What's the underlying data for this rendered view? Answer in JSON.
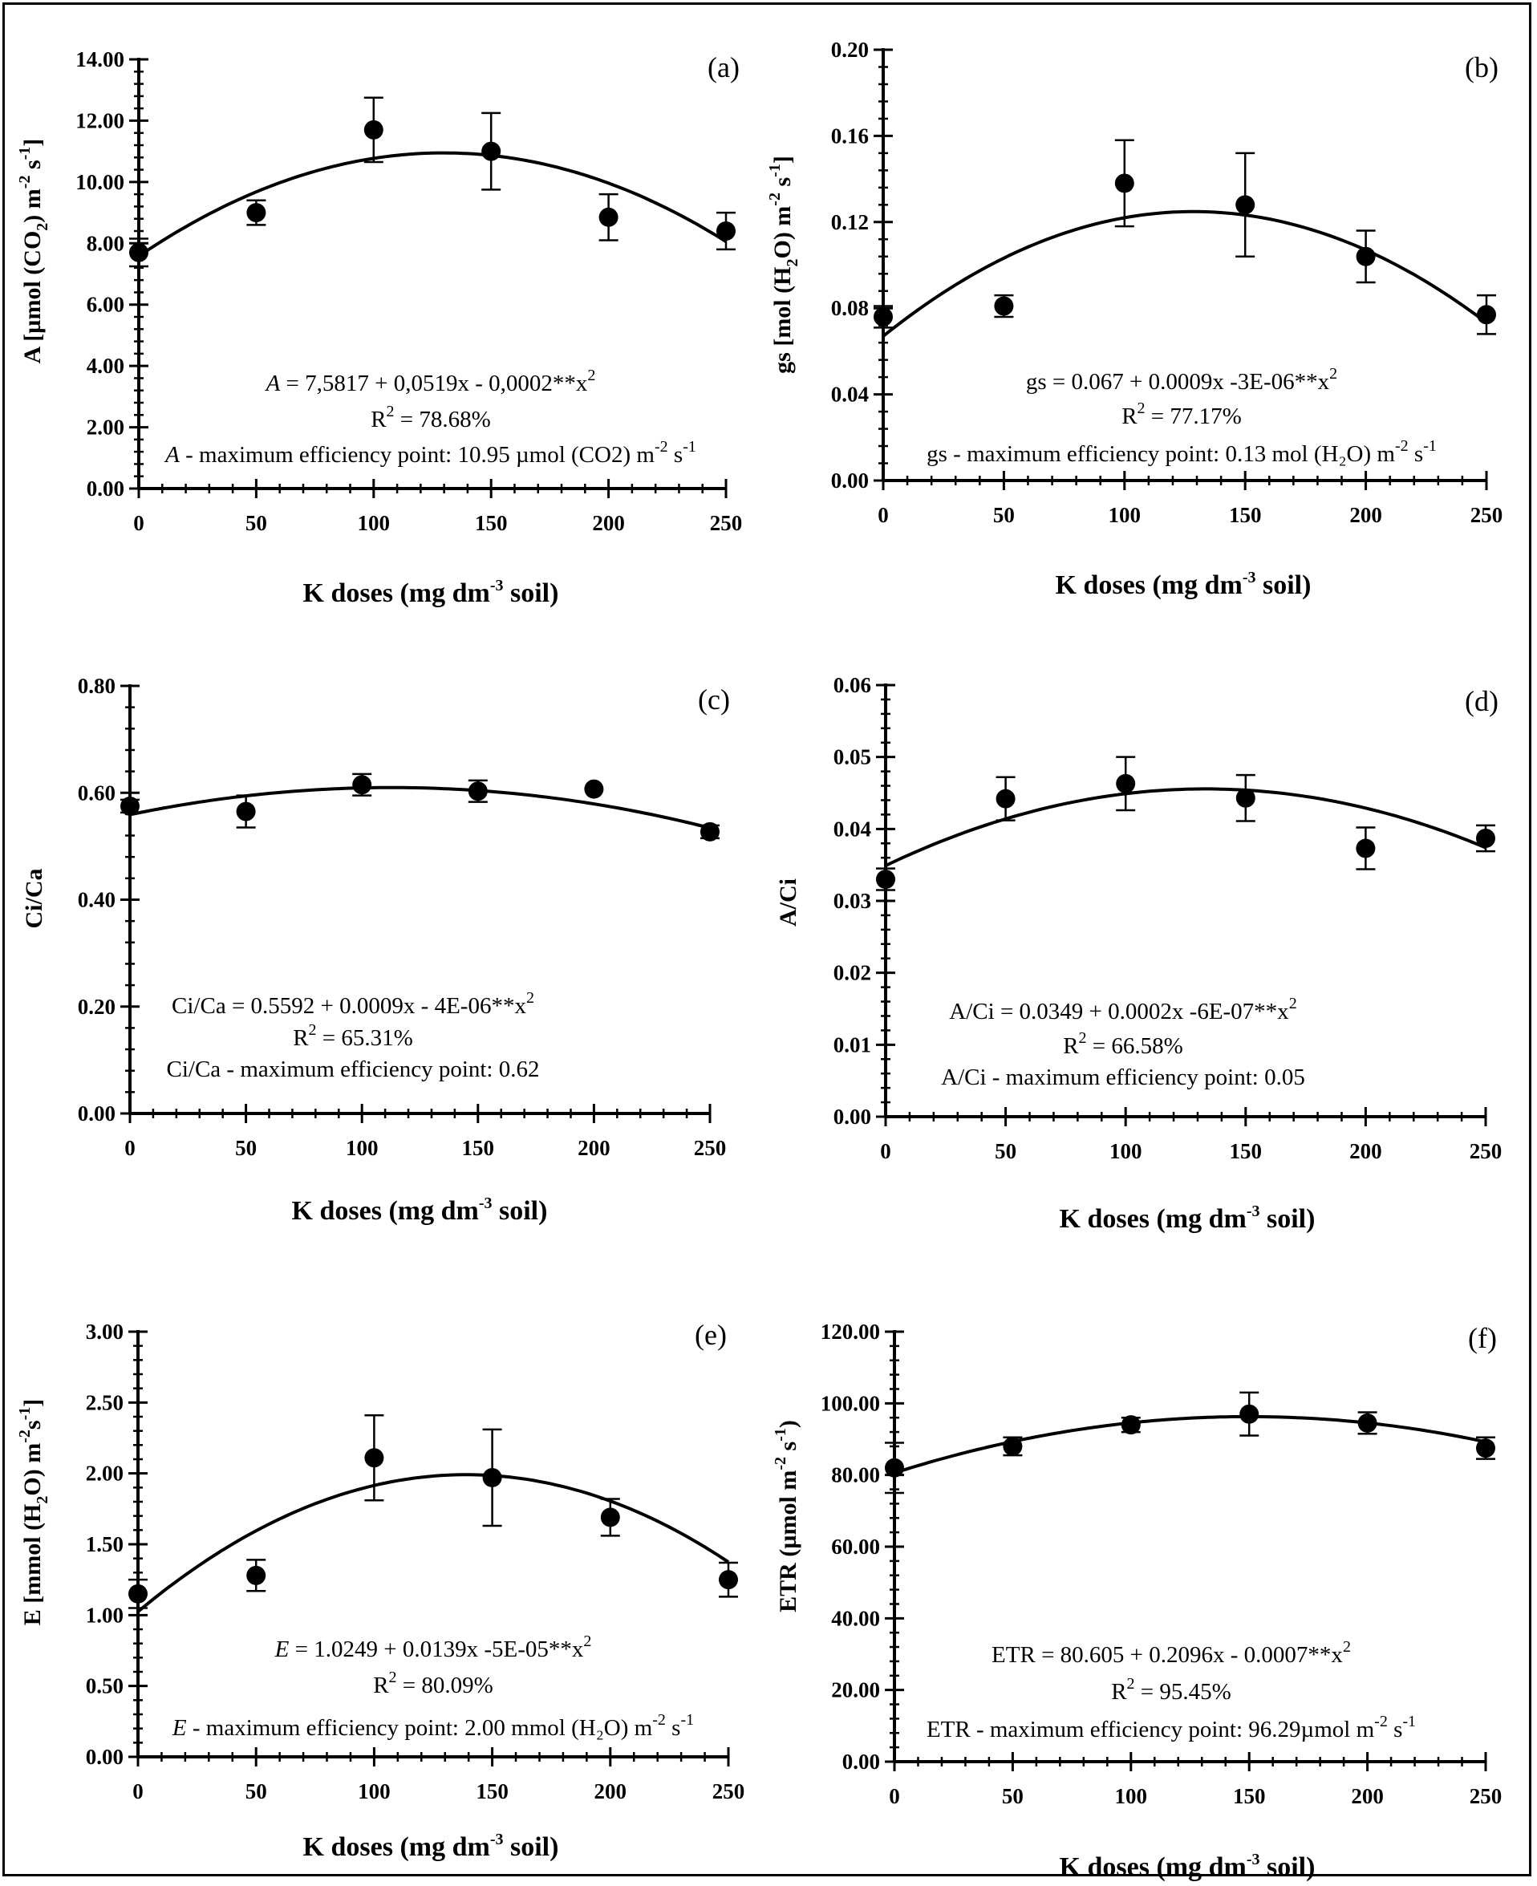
{
  "chart_data": [
    {
      "id": "a",
      "type": "scatter",
      "panel_label": "(a)",
      "xlabel": "K doses (mg dm-3 soil)",
      "ylabel": "A [µmol (CO2) m-2 s-1]",
      "x": [
        0,
        50,
        100,
        150,
        200,
        250
      ],
      "y": [
        7.7,
        9.0,
        11.7,
        11.0,
        8.85,
        8.4
      ],
      "err": [
        0.45,
        0.4,
        1.05,
        1.25,
        0.75,
        0.6
      ],
      "fit": {
        "a": 7.5817,
        "b": 0.0519,
        "c": -0.0002
      },
      "xlim": [
        0,
        250
      ],
      "ylim": [
        0,
        14
      ],
      "xticks": [
        "0",
        "50",
        "100",
        "150",
        "200",
        "250"
      ],
      "yticks": [
        "0.00",
        "2.00",
        "4.00",
        "6.00",
        "8.00",
        "10.00",
        "12.00",
        "14.00"
      ],
      "equation": {
        "lead": "A",
        "rest": " =  7,5817  + 0,0519x - 0,0002**x",
        "sup": "2"
      },
      "r2": {
        "pre": "R",
        "sup": "2",
        "post": " = 78.68%"
      },
      "mep": {
        "lead": "A",
        "rest": " - maximum efficiency point: 10.95 µmol (CO2) m",
        "sup1": "-2",
        "mid": " s",
        "sup2": "-1"
      }
    },
    {
      "id": "b",
      "type": "scatter",
      "panel_label": "(b)",
      "xlabel": "K doses (mg dm-3 soil)",
      "ylabel": "gs [mol (H2O) m-2 s-1]",
      "x": [
        0,
        50,
        100,
        150,
        200,
        250
      ],
      "y": [
        0.076,
        0.081,
        0.138,
        0.128,
        0.104,
        0.077
      ],
      "err": [
        0.005,
        0.005,
        0.02,
        0.024,
        0.012,
        0.009
      ],
      "fit": {
        "a": 0.067,
        "b": 0.0009,
        "c": -3.5e-06
      },
      "xlim": [
        0,
        250
      ],
      "ylim": [
        0,
        0.2
      ],
      "xticks": [
        "0",
        "50",
        "100",
        "150",
        "200",
        "250"
      ],
      "yticks": [
        "0.00",
        "0.04",
        "0.08",
        "0.12",
        "0.16",
        "0.20"
      ],
      "equation": {
        "lead": "",
        "rest": "gs = 0.067 + 0.0009x -3E-06**x",
        "sup": "2"
      },
      "r2": {
        "pre": "R",
        "sup": "2",
        "post": " = 77.17%"
      },
      "mep": {
        "lead": "",
        "rest": "gs - maximum efficiency point: 0.13  mol (H₂O) m",
        "sup1": "-2",
        "mid": " s",
        "sup2": "-1"
      }
    },
    {
      "id": "c",
      "type": "scatter",
      "panel_label": "(c)",
      "xlabel": "K doses (mg dm-3 soil)",
      "ylabel": "Ci/Ca",
      "x": [
        0,
        50,
        100,
        150,
        200,
        250
      ],
      "y": [
        0.575,
        0.565,
        0.615,
        0.603,
        0.607,
        0.527
      ],
      "err": [
        0.012,
        0.03,
        0.02,
        0.02,
        0.0,
        0.012
      ],
      "fit": {
        "a": 0.5592,
        "b": 0.0009,
        "c": -4e-06
      },
      "xlim": [
        0,
        250
      ],
      "ylim": [
        0,
        0.8
      ],
      "xticks": [
        "0",
        "50",
        "100",
        "150",
        "200",
        "250"
      ],
      "yticks": [
        "0.00",
        "0.20",
        "0.40",
        "0.60",
        "0.80"
      ],
      "equation": {
        "lead": "",
        "rest": "Ci/Ca = 0.5592 + 0.0009x - 4E-06**x",
        "sup": "2"
      },
      "r2": {
        "pre": "R",
        "sup": "2",
        "post": " = 65.31%"
      },
      "mep": {
        "lead": "",
        "rest": "Ci/Ca - maximum efficiency point: 0.62",
        "sup1": "",
        "mid": "",
        "sup2": ""
      }
    },
    {
      "id": "d",
      "type": "scatter",
      "panel_label": "(d)",
      "xlabel": "K doses (mg dm-3  soil)",
      "ylabel": "A/Ci",
      "x": [
        0,
        50,
        100,
        150,
        200,
        250
      ],
      "y": [
        0.033,
        0.0442,
        0.0463,
        0.0443,
        0.0373,
        0.0387
      ],
      "err": [
        0.0015,
        0.003,
        0.0037,
        0.0032,
        0.0029,
        0.0018
      ],
      "fit": {
        "a": 0.0349,
        "b": 0.00016,
        "c": -6e-07
      },
      "xlim": [
        0,
        250
      ],
      "ylim": [
        0,
        0.06
      ],
      "xticks": [
        "0",
        "50",
        "100",
        "150",
        "200",
        "250"
      ],
      "yticks": [
        "0.00",
        "0.01",
        "0.02",
        "0.03",
        "0.04",
        "0.05",
        "0.06"
      ],
      "equation": {
        "lead": "",
        "rest": "A/Ci = 0.0349 + 0.0002x  -6E-07**x",
        "sup": "2"
      },
      "r2": {
        "pre": "R",
        "sup": "2",
        "post": " = 66.58%"
      },
      "mep": {
        "lead": "",
        "rest": "A/Ci - maximum efficiency point: 0.05",
        "sup1": "",
        "mid": "",
        "sup2": ""
      }
    },
    {
      "id": "e",
      "type": "scatter",
      "panel_label": "(e)",
      "xlabel": "K doses (mg dm-3 soil)",
      "ylabel": "E [mmol (H2O) m-2 s-1]",
      "x": [
        0,
        50,
        100,
        150,
        200,
        250
      ],
      "y": [
        1.15,
        1.28,
        2.11,
        1.97,
        1.69,
        1.25
      ],
      "err": [
        0.1,
        0.11,
        0.3,
        0.34,
        0.13,
        0.12
      ],
      "fit": {
        "a": 1.0249,
        "b": 0.0139,
        "c": -5e-05
      },
      "xlim": [
        0,
        250
      ],
      "ylim": [
        0,
        3
      ],
      "xticks": [
        "0",
        "50",
        "100",
        "150",
        "200",
        "250"
      ],
      "yticks": [
        "0.00",
        "0.50",
        "1.00",
        "1.50",
        "2.00",
        "2.50",
        "3.00"
      ],
      "equation": {
        "lead": "E",
        "rest": " = 1.0249 + 0.0139x -5E-05**x",
        "sup": "2"
      },
      "r2": {
        "pre": "R",
        "sup": "2",
        "post": " = 80.09%"
      },
      "mep": {
        "lead": "E",
        "rest": " - maximum efficiency point: 2.00 mmol (H₂O) m",
        "sup1": "-2",
        "mid": " s",
        "sup2": "-1"
      }
    },
    {
      "id": "f",
      "type": "scatter",
      "panel_label": "(f)",
      "xlabel": "K doses (mg dm-3 soil)",
      "ylabel": "ETR (µmol m-2 s-1)",
      "x": [
        0,
        50,
        100,
        150,
        200,
        250
      ],
      "y": [
        82.0,
        88.0,
        94.0,
        97.0,
        94.5,
        87.5
      ],
      "err": [
        7.0,
        2.5,
        2.0,
        6.0,
        3.0,
        3.0
      ],
      "fit": {
        "a": 80.605,
        "b": 0.2096,
        "c": -0.0007
      },
      "xlim": [
        0,
        250
      ],
      "ylim": [
        0,
        120
      ],
      "xticks": [
        "0",
        "50",
        "100",
        "150",
        "200",
        "250"
      ],
      "yticks": [
        "0.00",
        "20.00",
        "40.00",
        "60.00",
        "80.00",
        "100.00",
        "120.00"
      ],
      "equation": {
        "lead": "",
        "rest": "ETR = 80.605 + 0.2096x - 0.0007**x",
        "sup": "2"
      },
      "r2": {
        "pre": "R",
        "sup": "2",
        "post": " = 95.45%"
      },
      "mep": {
        "lead": "",
        "rest": "ETR - maximum efficiency point: 96.29µmol m",
        "sup1": "-2",
        "mid": " s",
        "sup2": "-1"
      }
    }
  ]
}
